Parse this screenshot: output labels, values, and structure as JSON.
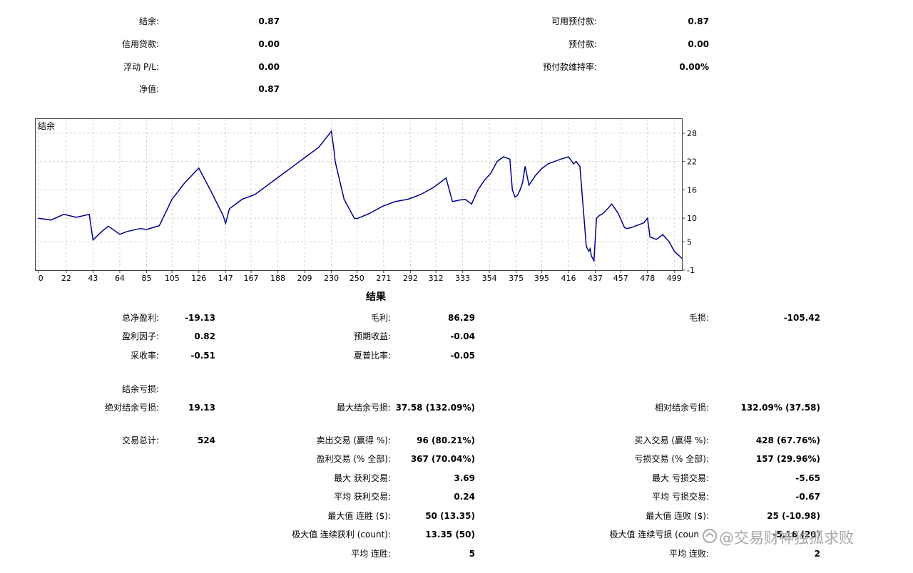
{
  "summary": {
    "balance_label": "结余:",
    "balance_value": "0.87",
    "credit_label": "信用贷款:",
    "credit_value": "0.00",
    "floating_label": "浮动 P/L:",
    "floating_value": "0.00",
    "equity_label": "净值:",
    "equity_value": "0.87",
    "free_margin_label": "可用预付款:",
    "free_margin_value": "0.87",
    "margin_label": "预付款:",
    "margin_value": "0.00",
    "margin_level_label": "预付款维持率:",
    "margin_level_value": "0.00%"
  },
  "chart_data": {
    "type": "line",
    "title": "结余",
    "series": [
      {
        "color": "#00008b",
        "x": [
          0,
          10,
          20,
          30,
          40,
          43,
          50,
          55,
          64,
          70,
          80,
          85,
          90,
          95,
          105,
          115,
          126,
          135,
          145,
          147,
          150,
          160,
          170,
          180,
          190,
          200,
          210,
          220,
          230,
          232,
          233,
          240,
          248,
          250,
          260,
          270,
          280,
          290,
          300,
          310,
          320,
          325,
          330,
          335,
          340,
          345,
          350,
          355,
          360,
          365,
          370,
          372,
          374,
          376,
          378,
          380,
          382,
          385,
          390,
          395,
          400,
          410,
          416,
          420,
          422,
          425,
          430,
          432,
          433,
          434,
          436,
          438,
          440,
          443,
          445,
          450,
          455,
          460,
          462,
          465,
          470,
          475,
          478,
          480,
          485,
          490,
          495,
          499,
          505
        ],
        "y": [
          10,
          9.6,
          10.8,
          10.2,
          10.8,
          5.4,
          7.2,
          8.3,
          6.6,
          7.2,
          7.8,
          7.6,
          8.0,
          8.4,
          14,
          17.5,
          20.6,
          16,
          10.6,
          8.9,
          12,
          14,
          15,
          17,
          19,
          21,
          23,
          25,
          28.4,
          24.5,
          22,
          14,
          10,
          9.9,
          11,
          12.5,
          13.5,
          14,
          15,
          16.5,
          18.5,
          13.5,
          13.8,
          14,
          13,
          16,
          18,
          19.5,
          22,
          23,
          22.5,
          16,
          14.5,
          14.8,
          16,
          17.5,
          21,
          17,
          19,
          20.5,
          21.5,
          22.5,
          23,
          21.5,
          22,
          21,
          4,
          3,
          3.5,
          2,
          1,
          10,
          10.5,
          11,
          11.5,
          13,
          11,
          8,
          7.8,
          8,
          8.5,
          9,
          10,
          6,
          5.5,
          6.5,
          5,
          3,
          1.5
        ]
      }
    ],
    "x_ticks": [
      0,
      22,
      43,
      64,
      85,
      105,
      126,
      147,
      167,
      188,
      209,
      230,
      250,
      271,
      292,
      312,
      333,
      354,
      375,
      395,
      416,
      437,
      457,
      478,
      499
    ],
    "y_ticks": [
      28,
      22,
      16,
      10,
      5,
      -1
    ],
    "xlim": [
      -2,
      505
    ],
    "ylim": [
      -1,
      31
    ],
    "grid": true
  },
  "results": {
    "title": "结果",
    "net_profit_label": "总净盈利:",
    "net_profit_value": "-19.13",
    "gross_profit_label": "毛利:",
    "gross_profit_value": "86.29",
    "gross_loss_label": "毛损:",
    "gross_loss_value": "-105.42",
    "profit_factor_label": "盈利因子:",
    "profit_factor_value": "0.82",
    "expected_payoff_label": "预期收益:",
    "expected_payoff_value": "-0.04",
    "recovery_label": "采收率:",
    "recovery_value": "-0.51",
    "sharpe_label": "夏普比率:",
    "sharpe_value": "-0.05",
    "balance_dd_label": "结余亏损:",
    "abs_dd_label": "绝对结余亏损:",
    "abs_dd_value": "19.13",
    "max_dd_label": "最大结余亏损:",
    "max_dd_value": "37.58 (132.09%)",
    "rel_dd_label": "相对结余亏损:",
    "rel_dd_value": "132.09% (37.58)",
    "total_trades_label": "交易总计:",
    "total_trades_value": "524",
    "short_label": "卖出交易 (赢得 %):",
    "short_value": "96 (80.21%)",
    "long_label": "买入交易 (赢得 %):",
    "long_value": "428 (67.76%)",
    "profit_trades_label": "盈利交易 (% 全部):",
    "profit_trades_value": "367 (70.04%)",
    "loss_trades_label": "亏损交易 (% 全部):",
    "loss_trades_value": "157 (29.96%)",
    "largest_profit_label": "最大 获利交易:",
    "largest_profit_value": "3.69",
    "largest_loss_label": "最大 亏损交易:",
    "largest_loss_value": "-5.65",
    "avg_profit_label": "平均 获利交易:",
    "avg_profit_value": "0.24",
    "avg_loss_label": "平均 亏损交易:",
    "avg_loss_value": "-0.67",
    "max_wins_label": "最大值 连胜 ($):",
    "max_wins_value": "50 (13.35)",
    "max_losses_label": "最大值 连败 ($):",
    "max_losses_value": "25 (-10.98)",
    "max_profit_count_label": "极大值 连续获利 (count):",
    "max_profit_count_value": "13.35 (50)",
    "max_loss_count_label": "极大值 连续亏损 (coun",
    "max_loss_count_value": "-5.16 (20)",
    "avg_wins_label": "平均 连胜:",
    "avg_wins_value": "5",
    "avg_losses_label": "平均 连败:",
    "avg_losses_value": "2"
  },
  "watermark": {
    "text": "@交易财神独孤求败"
  }
}
